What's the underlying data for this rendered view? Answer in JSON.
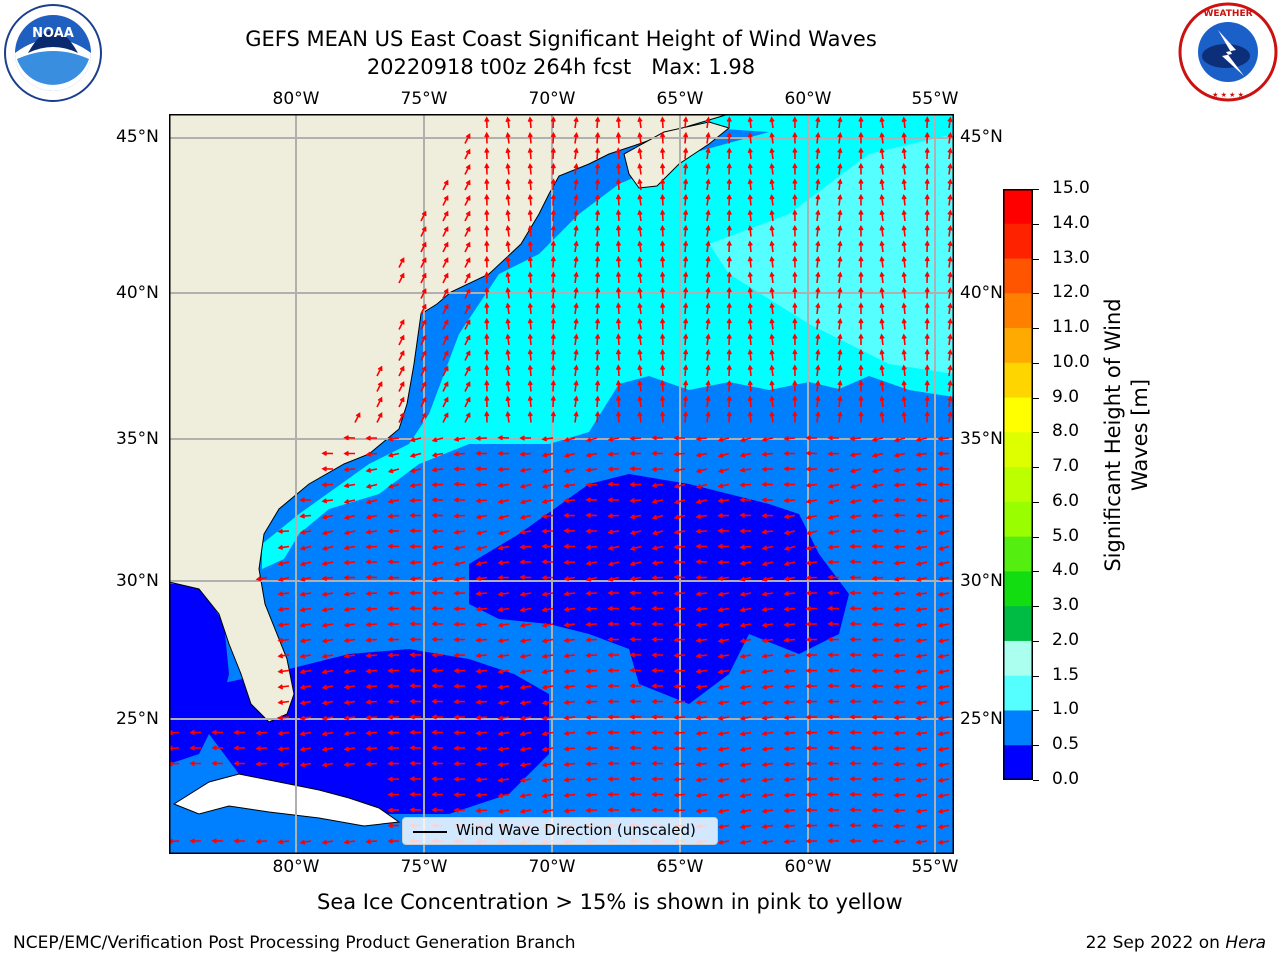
{
  "title": {
    "line1": "GEFS MEAN US East Coast Significant Height of Wind Waves",
    "line2": "20220918 t00z 264h fcst   Max: 1.98"
  },
  "logos": {
    "left": {
      "name": "NOAA",
      "ring_text": "NATIONAL OCEANIC AND ATMOSPHERIC ADMINISTRATION · U.S. DEPARTMENT OF COMMERCE"
    },
    "right": {
      "name": "NATIONAL WEATHER SERVICE"
    }
  },
  "map": {
    "lon_labels": [
      "80°W",
      "75°W",
      "70°W",
      "65°W",
      "60°W",
      "55°W"
    ],
    "lat_labels": [
      "45°N",
      "40°N",
      "35°N",
      "30°N",
      "25°N"
    ],
    "legend": "Wind Wave Direction (unscaled)",
    "colors": {
      "land": "#efeedd",
      "arrow": "#ff0000",
      "grid": "#b0b0b0",
      "coast": "#000000"
    }
  },
  "colorbar": {
    "label_line1": "Significant Height of Wind",
    "label_line2": "Waves [m]",
    "ticks": [
      "15.0",
      "14.0",
      "13.0",
      "12.0",
      "11.0",
      "10.0",
      "9.0",
      "8.0",
      "7.0",
      "6.0",
      "5.0",
      "4.0",
      "3.0",
      "2.0",
      "1.5",
      "1.0",
      "0.5",
      "0.0"
    ],
    "colors": [
      "#ff0000",
      "#ff2200",
      "#ff5500",
      "#ff8000",
      "#ffaa00",
      "#ffd500",
      "#ffff00",
      "#ddff00",
      "#bbff00",
      "#99ff00",
      "#55ee11",
      "#11dd11",
      "#00bb44",
      "#55ff88",
      "#aaffee",
      "#55ffff",
      "#00ffff",
      "#0080ff",
      "#0000ff"
    ]
  },
  "footer": {
    "note": "Sea Ice Concentration > 15% is shown in pink to yellow",
    "left": "NCEP/EMC/Verification Post Processing Product Generation Branch",
    "right_date": "22 Sep 2022 on ",
    "right_machine": "Hera"
  }
}
